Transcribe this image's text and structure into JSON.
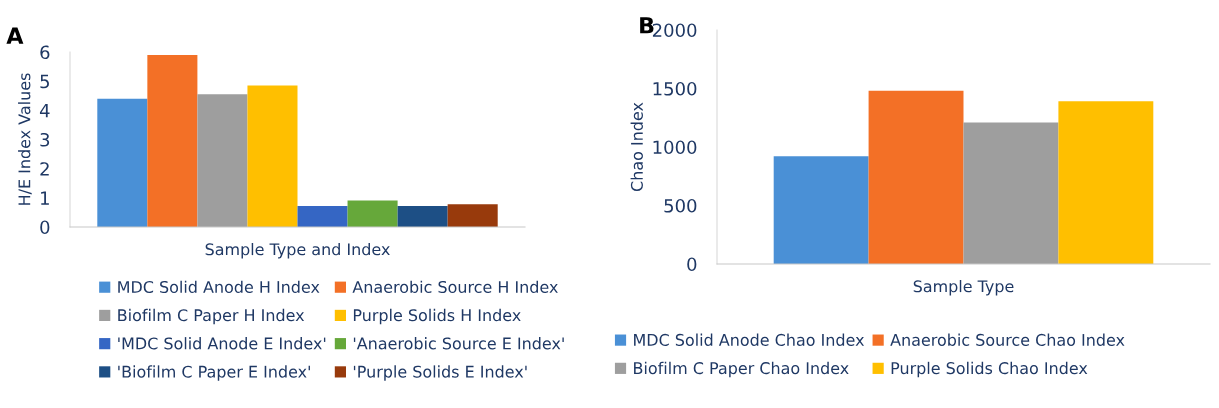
{
  "chart_data": [
    {
      "type": "bar",
      "title": "A",
      "xlabel": "Sample Type and Index",
      "ylabel": "H/E Index Values",
      "categories": [
        null
      ],
      "ylim": [
        0,
        6
      ],
      "yticks": [
        0,
        1,
        2,
        3,
        4,
        5,
        6
      ],
      "grid": false,
      "legend": "bottom",
      "series": [
        {
          "name": "MDC Solid Anode H Index",
          "color": "#4a90d6",
          "values": [
            4.4
          ]
        },
        {
          "name": "Anaerobic Source H Index",
          "color": "#f37026",
          "values": [
            5.9
          ]
        },
        {
          "name": "Biofilm C Paper H Index",
          "color": "#9e9e9e",
          "values": [
            4.55
          ]
        },
        {
          "name": "Purple Solids H Index",
          "color": "#ffbf00",
          "values": [
            4.85
          ]
        },
        {
          "name": "'MDC Solid Anode E Index'",
          "color": "#3566c4",
          "values": [
            0.72
          ]
        },
        {
          "name": "'Anaerobic Source E Index'",
          "color": "#66a83a",
          "values": [
            0.91
          ]
        },
        {
          "name": "'Biofilm C Paper E Index'",
          "color": "#1d4f85",
          "values": [
            0.72
          ]
        },
        {
          "name": "'Purple Solids E Index'",
          "color": "#983a0c",
          "values": [
            0.78
          ]
        }
      ]
    },
    {
      "type": "bar",
      "title": "B",
      "xlabel": "Sample Type",
      "ylabel": "Chao Index",
      "categories": [
        null
      ],
      "ylim": [
        0,
        2000
      ],
      "yticks": [
        0,
        500,
        1000,
        1500,
        2000
      ],
      "grid": false,
      "legend": "bottom",
      "series": [
        {
          "name": "MDC Solid Anode Chao Index",
          "color": "#4a90d6",
          "values": [
            920
          ]
        },
        {
          "name": "Anaerobic Source Chao Index",
          "color": "#f37026",
          "values": [
            1480
          ]
        },
        {
          "name": "Biofilm C Paper Chao Index",
          "color": "#9e9e9e",
          "values": [
            1210
          ]
        },
        {
          "name": "Purple Solids Chao Index",
          "color": "#ffbf00",
          "values": [
            1390
          ]
        }
      ]
    }
  ]
}
